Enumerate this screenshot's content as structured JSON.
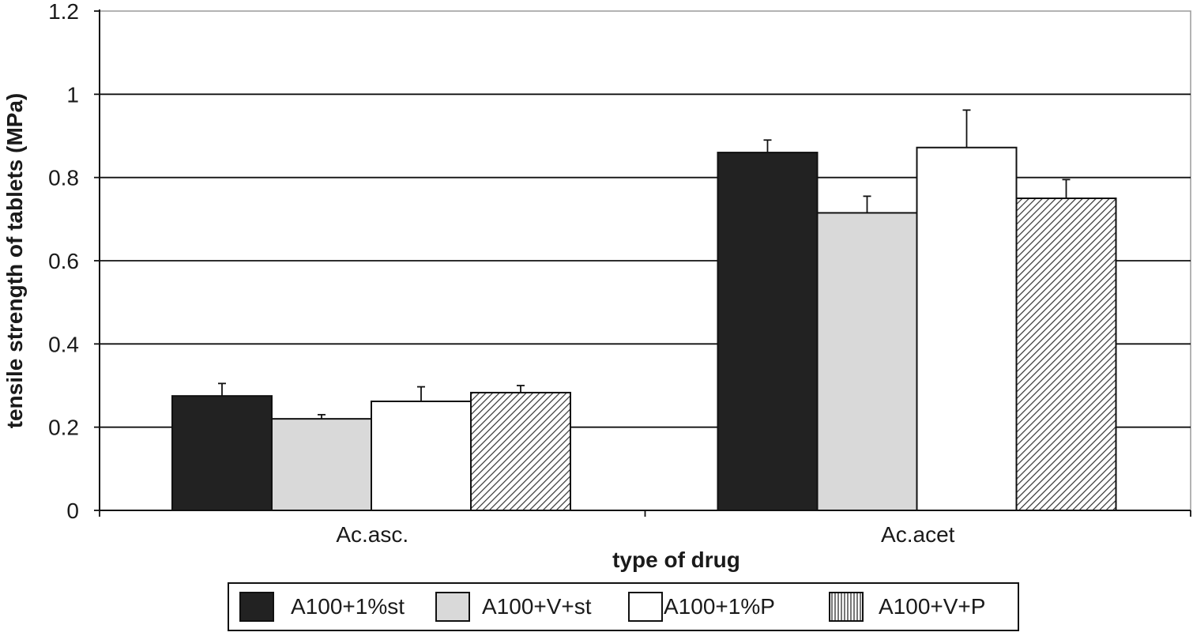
{
  "chart_data": {
    "type": "bar",
    "title": "",
    "xlabel": "type of drug",
    "ylabel": "tensile strength of tablets (MPa)",
    "ylim": [
      0,
      1.2
    ],
    "yticks": [
      0,
      0.2,
      0.4,
      0.6,
      0.8,
      1,
      1.2
    ],
    "ytick_labels": [
      "0",
      "0.2",
      "0.4",
      "0.6",
      "0.8",
      "1",
      "1.2"
    ],
    "grid": true,
    "legend_position": "bottom",
    "categories": [
      "Ac.asc.",
      "Ac.acet"
    ],
    "series": [
      {
        "name": "A100+1%st",
        "values": [
          0.275,
          0.86
        ],
        "errors": [
          0.03,
          0.03
        ],
        "fill": "#222222",
        "pattern": "solid"
      },
      {
        "name": "A100+V+st",
        "values": [
          0.22,
          0.715
        ],
        "errors": [
          0.01,
          0.04
        ],
        "fill": "#d9d9d9",
        "pattern": "solid"
      },
      {
        "name": "A100+1%P",
        "values": [
          0.262,
          0.872
        ],
        "errors": [
          0.035,
          0.09
        ],
        "fill": "#ffffff",
        "pattern": "solid"
      },
      {
        "name": "A100+V+P",
        "values": [
          0.283,
          0.75
        ],
        "errors": [
          0.017,
          0.045
        ],
        "fill": "#ffffff",
        "pattern": "diagonal-hatch"
      }
    ]
  }
}
